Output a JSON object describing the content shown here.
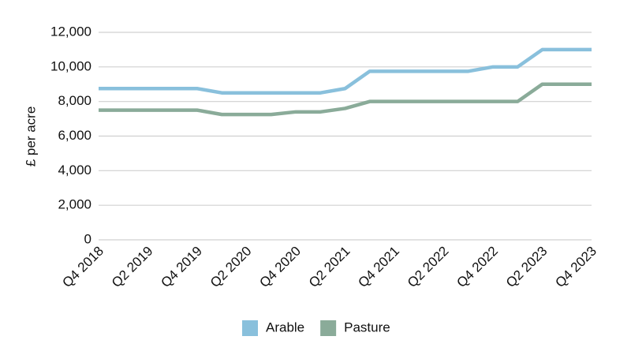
{
  "chart_data": {
    "type": "line",
    "y_label": "£ per acre",
    "categories": [
      "Q4 2018",
      null,
      "Q2 2019",
      null,
      "Q4 2019",
      null,
      "Q2 2020",
      null,
      "Q4 2020",
      null,
      "Q2 2021",
      null,
      "Q4 2021",
      null,
      "Q2 2022",
      null,
      "Q4 2022",
      null,
      "Q2 2023",
      null,
      "Q4 2023"
    ],
    "series": [
      {
        "name": "Arable",
        "color": "#89c0dc",
        "values": [
          8750,
          8750,
          8750,
          8750,
          8750,
          8500,
          8500,
          8500,
          8500,
          8500,
          8750,
          9750,
          9750,
          9750,
          9750,
          9750,
          10000,
          10000,
          11000,
          11000,
          11000
        ]
      },
      {
        "name": "Pasture",
        "color": "#8aab99",
        "values": [
          7500,
          7500,
          7500,
          7500,
          7500,
          7250,
          7250,
          7250,
          7400,
          7400,
          7600,
          8000,
          8000,
          8000,
          8000,
          8000,
          8000,
          8000,
          9000,
          9000,
          9000
        ]
      }
    ],
    "ylim": [
      0,
      12000
    ],
    "yticks": [
      0,
      {
        "value": 2000,
        "label": "2,000"
      },
      {
        "value": 4000,
        "label": "4,000"
      },
      {
        "value": 6000,
        "label": "6,000"
      },
      {
        "value": 8000,
        "label": "8,000"
      },
      {
        "value": 10000,
        "label": "10,000"
      },
      {
        "value": 12000,
        "label": "12,000"
      }
    ],
    "grid": true,
    "legend": "bottom"
  }
}
